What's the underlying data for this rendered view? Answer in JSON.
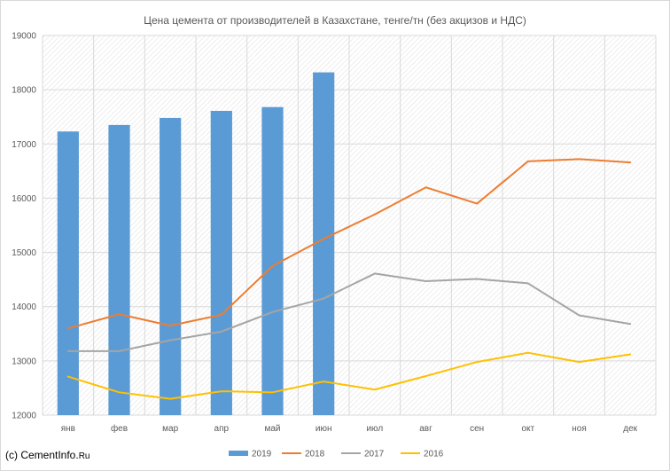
{
  "chart_data": {
    "type": "bar",
    "title": "Цена цемента от производителей в Казахстане, тенге/тн (без акцизов и НДС)",
    "categories": [
      "янв",
      "фев",
      "мар",
      "апр",
      "май",
      "июн",
      "июл",
      "авг",
      "сен",
      "окт",
      "ноя",
      "дек"
    ],
    "ylim": [
      12000,
      19000
    ],
    "yticks": [
      12000,
      13000,
      14000,
      15000,
      16000,
      17000,
      18000,
      19000
    ],
    "grid": true,
    "legend_position": "bottom",
    "series": [
      {
        "name": "2019",
        "type": "bar",
        "color": "#5B9BD5",
        "values": [
          17230,
          17350,
          17480,
          17610,
          17680,
          18320,
          null,
          null,
          null,
          null,
          null,
          null
        ]
      },
      {
        "name": "2018",
        "type": "line",
        "color": "#ED7D31",
        "values": [
          13600,
          13860,
          13650,
          13850,
          14750,
          15250,
          15700,
          16200,
          15900,
          16680,
          16720,
          16660
        ]
      },
      {
        "name": "2017",
        "type": "line",
        "color": "#A5A5A5",
        "values": [
          13180,
          13180,
          13380,
          13540,
          13900,
          14150,
          14610,
          14470,
          14510,
          14430,
          13840,
          13680
        ]
      },
      {
        "name": "2016",
        "type": "line",
        "color": "#FFC000",
        "values": [
          12710,
          12420,
          12300,
          12440,
          12420,
          12620,
          12470,
          12720,
          12980,
          13150,
          12980,
          13120
        ]
      }
    ]
  },
  "source": {
    "prefix": "(c) CementInfo.",
    "suffix": "Ru"
  }
}
